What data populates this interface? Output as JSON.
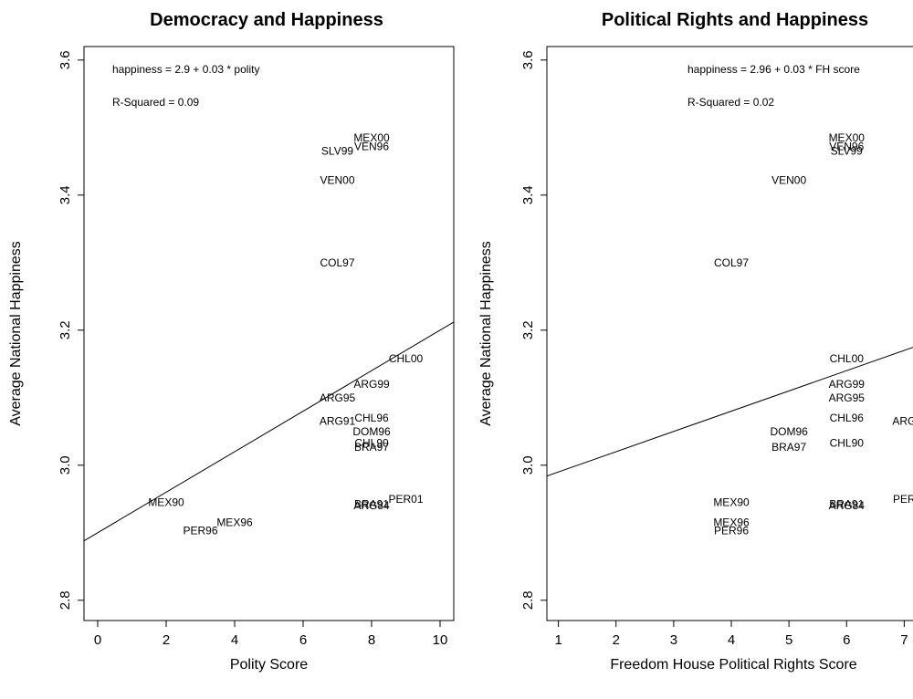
{
  "chart_data": [
    {
      "type": "scatter",
      "title": "Democracy and Happiness",
      "xlabel": "Polity Score",
      "ylabel": "Average National Happiness",
      "xlim": [
        -0.4,
        10.4
      ],
      "ylim": [
        2.77,
        3.62
      ],
      "x_ticks": [
        0,
        2,
        4,
        6,
        8,
        10
      ],
      "y_ticks": [
        2.8,
        3.0,
        3.2,
        3.4,
        3.6
      ],
      "grid": false,
      "annotations": [
        "happiness =  2.9 +  0.03 * polity",
        "R-Squared = 0.09"
      ],
      "regression": {
        "intercept": 2.9,
        "slope": 0.03
      },
      "points": [
        {
          "label": "MEX00",
          "x": 8,
          "y": 3.485
        },
        {
          "label": "VEN96",
          "x": 8,
          "y": 3.472
        },
        {
          "label": "SLV99",
          "x": 7,
          "y": 3.465
        },
        {
          "label": "VEN00",
          "x": 7,
          "y": 3.422
        },
        {
          "label": "COL97",
          "x": 7,
          "y": 3.3
        },
        {
          "label": "CHL00",
          "x": 9,
          "y": 3.158
        },
        {
          "label": "ARG99",
          "x": 8,
          "y": 3.12
        },
        {
          "label": "ARG95",
          "x": 7,
          "y": 3.1
        },
        {
          "label": "ARG91",
          "x": 7,
          "y": 3.065
        },
        {
          "label": "CHL96",
          "x": 8,
          "y": 3.07
        },
        {
          "label": "DOM96",
          "x": 8,
          "y": 3.05
        },
        {
          "label": "CHL90",
          "x": 8,
          "y": 3.033
        },
        {
          "label": "BRA97",
          "x": 8,
          "y": 3.027
        },
        {
          "label": "PER01",
          "x": 9,
          "y": 2.95
        },
        {
          "label": "BRA91",
          "x": 8,
          "y": 2.942
        },
        {
          "label": "ARG84",
          "x": 8,
          "y": 2.94
        },
        {
          "label": "MEX90",
          "x": 2,
          "y": 2.945
        },
        {
          "label": "MEX96",
          "x": 4,
          "y": 2.915
        },
        {
          "label": "PER96",
          "x": 3,
          "y": 2.903
        }
      ]
    },
    {
      "type": "scatter",
      "title": "Political Rights and Happiness",
      "xlabel": "Freedom House Political Rights Score",
      "ylabel": "Average National Happiness",
      "xlim": [
        0.8,
        7.2
      ],
      "ylim": [
        2.77,
        3.62
      ],
      "x_ticks": [
        1,
        2,
        3,
        4,
        5,
        6,
        7
      ],
      "y_ticks": [
        2.8,
        3.0,
        3.2,
        3.4,
        3.6
      ],
      "grid": false,
      "annotations": [
        "happiness =  2.96 +  0.03 * FH score",
        "R-Squared = 0.02"
      ],
      "regression": {
        "intercept": 2.96,
        "slope": 0.03
      },
      "points": [
        {
          "label": "MEX00",
          "x": 6,
          "y": 3.485
        },
        {
          "label": "VEN96",
          "x": 6,
          "y": 3.472
        },
        {
          "label": "SLV99",
          "x": 6,
          "y": 3.465
        },
        {
          "label": "VEN00",
          "x": 5,
          "y": 3.422
        },
        {
          "label": "COL97",
          "x": 4,
          "y": 3.3
        },
        {
          "label": "CHL00",
          "x": 6,
          "y": 3.158
        },
        {
          "label": "ARG99",
          "x": 6,
          "y": 3.12
        },
        {
          "label": "ARG95",
          "x": 6,
          "y": 3.1
        },
        {
          "label": "CHL96",
          "x": 6,
          "y": 3.07
        },
        {
          "label": "ARG",
          "x": 7,
          "y": 3.065
        },
        {
          "label": "DOM96",
          "x": 5,
          "y": 3.05
        },
        {
          "label": "CHL90",
          "x": 6,
          "y": 3.033
        },
        {
          "label": "BRA97",
          "x": 5,
          "y": 3.027
        },
        {
          "label": "PER",
          "x": 7,
          "y": 2.95
        },
        {
          "label": "BRA91",
          "x": 6,
          "y": 2.942
        },
        {
          "label": "ARG84",
          "x": 6,
          "y": 2.94
        },
        {
          "label": "MEX90",
          "x": 4,
          "y": 2.945
        },
        {
          "label": "MEX96",
          "x": 4,
          "y": 2.915
        },
        {
          "label": "PER96",
          "x": 4,
          "y": 2.903
        }
      ]
    }
  ]
}
